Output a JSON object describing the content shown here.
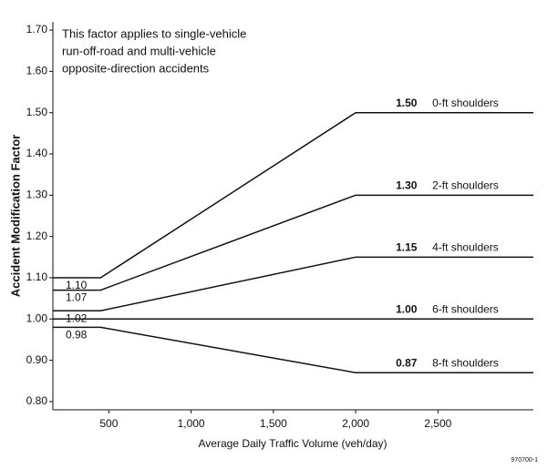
{
  "chart_data": {
    "type": "line",
    "annotation": [
      "This factor applies to single-vehicle",
      "run-off-road and multi-vehicle",
      "opposite-direction accidents"
    ],
    "xlabel": "Average Daily Traffic Volume (veh/day)",
    "ylabel": "Accident Modification Factor",
    "footnote": "970700-1",
    "x": [
      160,
      450,
      2000,
      3080
    ],
    "series": [
      {
        "name": "0-ft shoulders",
        "color": "#111111",
        "values": [
          1.1,
          1.1,
          1.5,
          1.5
        ],
        "value_labels": [
          "1.10",
          null,
          "1.50",
          null
        ]
      },
      {
        "name": "2-ft shoulders",
        "color": "#111111",
        "values": [
          1.07,
          1.07,
          1.3,
          1.3
        ],
        "value_labels": [
          "1.07",
          null,
          "1.30",
          null
        ]
      },
      {
        "name": "4-ft shoulders",
        "color": "#111111",
        "values": [
          1.02,
          1.02,
          1.15,
          1.15
        ],
        "value_labels": [
          "1.02",
          null,
          "1.15",
          null
        ]
      },
      {
        "name": "6-ft shoulders",
        "color": "#111111",
        "values": [
          1.0,
          1.0,
          1.0,
          1.0
        ],
        "value_labels": [
          null,
          null,
          "1.00",
          null
        ]
      },
      {
        "name": "8-ft shoulders",
        "color": "#111111",
        "values": [
          0.98,
          0.98,
          0.87,
          0.87
        ],
        "value_labels": [
          "0.98",
          null,
          "0.87",
          null
        ]
      }
    ],
    "xlim": [
      160,
      3080
    ],
    "ylim": [
      0.78,
      1.72
    ],
    "xticks": [
      500,
      {
        "value": 1000,
        "label": "1,000"
      },
      {
        "value": 1500,
        "label": "1,500"
      },
      {
        "value": 2000,
        "label": "2,000"
      },
      {
        "value": 2500,
        "label": "2,500"
      }
    ],
    "yticks": [
      {
        "value": 0.8,
        "label": "0.80"
      },
      {
        "value": 0.9,
        "label": "0.90"
      },
      {
        "value": 1.0,
        "label": "1.00"
      },
      {
        "value": 1.1,
        "label": "1.10"
      },
      {
        "value": 1.2,
        "label": "1.20"
      },
      {
        "value": 1.3,
        "label": "1.30"
      },
      {
        "value": 1.4,
        "label": "1.40"
      },
      {
        "value": 1.5,
        "label": "1.50"
      },
      {
        "value": 1.6,
        "label": "1.60"
      },
      {
        "value": 1.7,
        "label": "1.70"
      }
    ],
    "grid": false
  }
}
